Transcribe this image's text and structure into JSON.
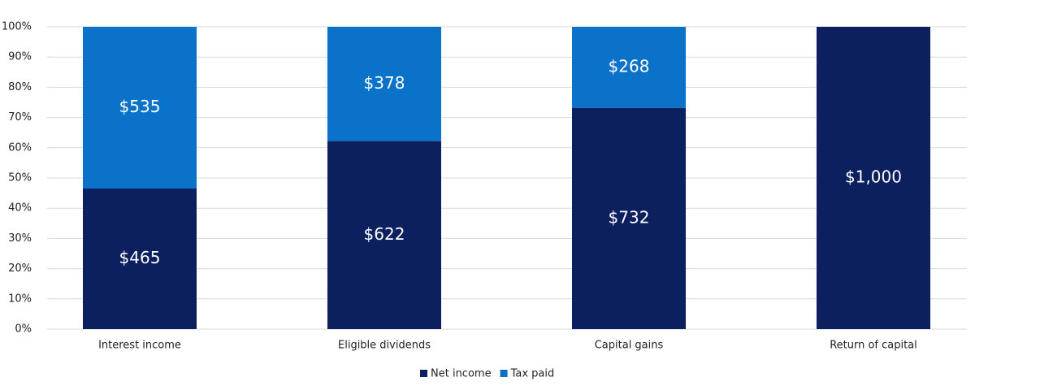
{
  "chart_data": {
    "type": "stacked_bar",
    "categories": [
      "Interest income",
      "Eligible dividends",
      "Capital gains",
      "Return of capital"
    ],
    "series": [
      {
        "name": "Net income",
        "color": "#0c1f5e",
        "values": [
          46.5,
          62.2,
          73.2,
          100
        ],
        "value_labels": [
          "$465",
          "$622",
          "$732",
          "$1,000"
        ]
      },
      {
        "name": "Tax paid",
        "color": "#0a72c9",
        "values": [
          53.5,
          37.8,
          26.8,
          0
        ],
        "value_labels": [
          "$535",
          "$378",
          "$268",
          null
        ]
      }
    ],
    "ylim": [
      0,
      100
    ],
    "yticks": [
      {
        "value": 0,
        "label": "0%"
      },
      {
        "value": 10,
        "label": "10%"
      },
      {
        "value": 20,
        "label": "20%"
      },
      {
        "value": 30,
        "label": "30%"
      },
      {
        "value": 40,
        "label": "40%"
      },
      {
        "value": 50,
        "label": "50%"
      },
      {
        "value": 60,
        "label": "60%"
      },
      {
        "value": 70,
        "label": "70%"
      },
      {
        "value": 80,
        "label": "80%"
      },
      {
        "value": 90,
        "label": "90%"
      },
      {
        "value": 100,
        "label": "100%"
      }
    ],
    "grid": true,
    "legend": "bottom"
  }
}
